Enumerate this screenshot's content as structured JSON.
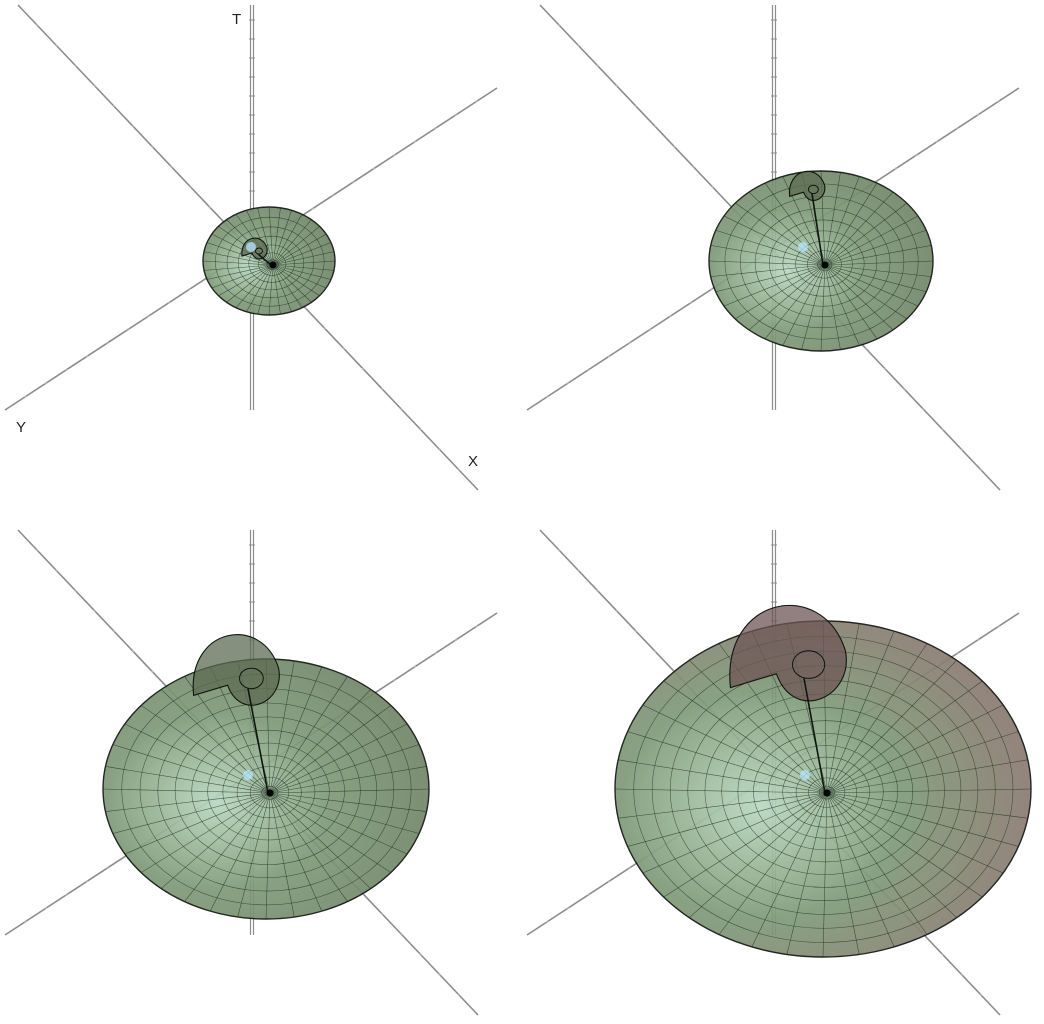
{
  "figure": {
    "description_free": true,
    "axis_labels": {
      "t": "T",
      "y": "Y",
      "x": "X"
    },
    "colors": {
      "background": "#ffffff",
      "axis": "#8c8c8c",
      "axis_tick": "#b5b5b5",
      "surface_fill": "#7f9a78",
      "surface_fill_outer": "#8e6f6f",
      "mesh": "#1c2a1c",
      "rim": "#101510",
      "center_glow": "#b9e4ff"
    },
    "panels": [
      {
        "id": "panel-1",
        "stage": 1,
        "shows_labels": true
      },
      {
        "id": "panel-2",
        "stage": 2,
        "shows_labels": false
      },
      {
        "id": "panel-3",
        "stage": 3,
        "shows_labels": false
      },
      {
        "id": "panel-4",
        "stage": 4,
        "shows_labels": false
      }
    ]
  }
}
